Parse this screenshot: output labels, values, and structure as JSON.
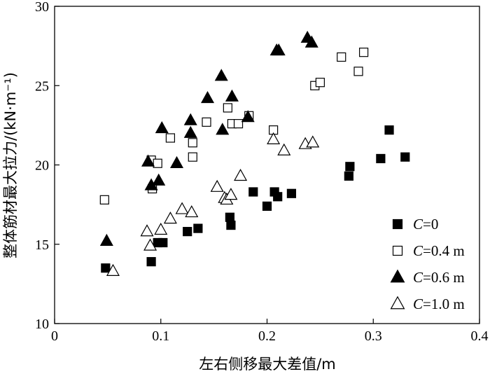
{
  "chart_data": {
    "type": "scatter",
    "xlabel": "左右侧移最大差值/m",
    "ylabel": "整体筋材最大拉力/(kN·m⁻¹)",
    "xlim": [
      0,
      0.4
    ],
    "ylim": [
      10,
      30
    ],
    "x_ticks": [
      "0",
      "0.1",
      "0.2",
      "0.3",
      "0.4"
    ],
    "y_ticks": [
      "10",
      "15",
      "20",
      "25",
      "30"
    ],
    "grid": false,
    "legend_position": "bottom-right",
    "series": [
      {
        "name": "C=0",
        "name_var": "C",
        "name_rest": "=0",
        "marker": "square-filled",
        "points": [
          [
            0.048,
            13.5
          ],
          [
            0.091,
            13.9
          ],
          [
            0.097,
            15.1
          ],
          [
            0.102,
            15.1
          ],
          [
            0.125,
            15.8
          ],
          [
            0.135,
            16.0
          ],
          [
            0.165,
            16.7
          ],
          [
            0.166,
            16.2
          ],
          [
            0.187,
            18.3
          ],
          [
            0.2,
            17.4
          ],
          [
            0.207,
            18.3
          ],
          [
            0.21,
            18.0
          ],
          [
            0.223,
            18.2
          ],
          [
            0.277,
            19.3
          ],
          [
            0.278,
            19.9
          ],
          [
            0.307,
            20.4
          ],
          [
            0.315,
            22.2
          ],
          [
            0.33,
            20.5
          ]
        ]
      },
      {
        "name": "C=0.4 m",
        "name_var": "C",
        "name_rest": "=0.4 m",
        "marker": "square-open",
        "points": [
          [
            0.047,
            17.8
          ],
          [
            0.091,
            20.3
          ],
          [
            0.092,
            18.5
          ],
          [
            0.097,
            20.1
          ],
          [
            0.109,
            21.7
          ],
          [
            0.13,
            21.4
          ],
          [
            0.13,
            20.5
          ],
          [
            0.143,
            22.7
          ],
          [
            0.163,
            23.6
          ],
          [
            0.167,
            22.6
          ],
          [
            0.173,
            22.6
          ],
          [
            0.183,
            23.1
          ],
          [
            0.206,
            22.2
          ],
          [
            0.245,
            25.0
          ],
          [
            0.25,
            25.2
          ],
          [
            0.27,
            26.8
          ],
          [
            0.286,
            25.9
          ],
          [
            0.291,
            27.1
          ]
        ]
      },
      {
        "name": "C=0.6 m",
        "name_var": "C",
        "name_rest": "=0.6 m",
        "marker": "triangle-filled",
        "points": [
          [
            0.049,
            15.2
          ],
          [
            0.088,
            20.2
          ],
          [
            0.091,
            18.7
          ],
          [
            0.098,
            19.0
          ],
          [
            0.101,
            22.3
          ],
          [
            0.115,
            20.1
          ],
          [
            0.128,
            22.8
          ],
          [
            0.128,
            22.0
          ],
          [
            0.144,
            24.2
          ],
          [
            0.157,
            25.6
          ],
          [
            0.158,
            22.2
          ],
          [
            0.167,
            24.3
          ],
          [
            0.182,
            23.0
          ],
          [
            0.209,
            27.2
          ],
          [
            0.211,
            27.2
          ],
          [
            0.238,
            28.0
          ],
          [
            0.242,
            27.7
          ]
        ]
      },
      {
        "name": "C=1.0 m",
        "name_var": "C",
        "name_rest": "=1.0 m",
        "marker": "triangle-open",
        "points": [
          [
            0.055,
            13.3
          ],
          [
            0.087,
            15.8
          ],
          [
            0.09,
            14.9
          ],
          [
            0.1,
            15.9
          ],
          [
            0.109,
            16.6
          ],
          [
            0.12,
            17.2
          ],
          [
            0.129,
            17.0
          ],
          [
            0.153,
            18.6
          ],
          [
            0.16,
            17.9
          ],
          [
            0.162,
            17.8
          ],
          [
            0.166,
            18.1
          ],
          [
            0.175,
            19.3
          ],
          [
            0.206,
            21.6
          ],
          [
            0.216,
            20.9
          ],
          [
            0.236,
            21.3
          ],
          [
            0.243,
            21.4
          ]
        ]
      }
    ]
  }
}
